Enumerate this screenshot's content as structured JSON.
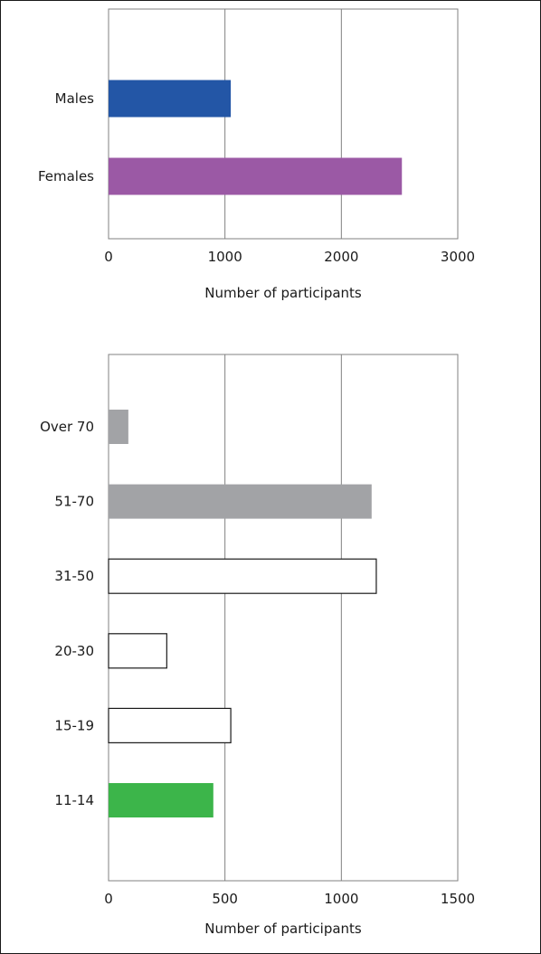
{
  "chart_data": [
    {
      "type": "bar",
      "orientation": "horizontal",
      "categories": [
        "Males",
        "Females"
      ],
      "values": [
        1050,
        2520
      ],
      "colors": [
        "#2356a6",
        "#9b59a5"
      ],
      "xlabel": "Number of participants",
      "xlim": [
        0,
        3000
      ],
      "xticks": [
        0,
        1000,
        2000,
        3000
      ],
      "grid": true
    },
    {
      "type": "bar",
      "orientation": "horizontal",
      "categories": [
        "Over 70",
        "51-70",
        "31-50",
        "20-30",
        "15-19",
        "11-14"
      ],
      "values": [
        85,
        1130,
        1150,
        250,
        525,
        450
      ],
      "colors": [
        "#a2a3a6",
        "#a2a3a6",
        "#ffffff",
        "#ffffff",
        "#ffffff",
        "#3cb54a"
      ],
      "xlabel": "Number of participants",
      "xlim": [
        0,
        1500
      ],
      "xticks": [
        0,
        500,
        1000,
        1500
      ],
      "grid": true
    }
  ]
}
